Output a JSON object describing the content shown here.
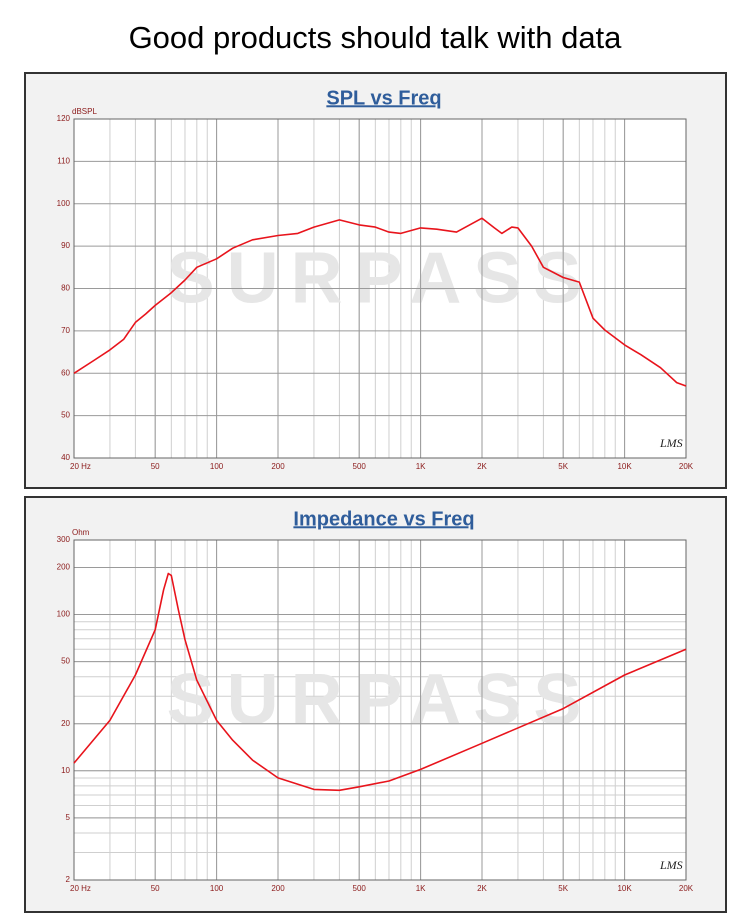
{
  "header": {
    "title": "Good products should talk with data"
  },
  "chart_data": [
    {
      "type": "line",
      "title": "SPL vs Freq",
      "y_label": "dBSPL",
      "watermark": "SURPASS",
      "logo": "LMS",
      "xscale": "log",
      "xminor": true,
      "yscale": "linear",
      "yminor": false,
      "grid": true,
      "xlim": [
        20,
        20000
      ],
      "ylim": [
        40,
        120
      ],
      "xticks": [
        {
          "value": 20,
          "label": "20 Hz"
        },
        50,
        100,
        200,
        500,
        {
          "value": 1000,
          "label": "1K"
        },
        {
          "value": 2000,
          "label": "2K"
        },
        {
          "value": 5000,
          "label": "5K"
        },
        {
          "value": 10000,
          "label": "10K"
        },
        {
          "value": 20000,
          "label": "20K"
        }
      ],
      "yticks": [
        40,
        50,
        60,
        70,
        80,
        90,
        100,
        110,
        120
      ],
      "x": [
        20,
        25,
        30,
        35,
        40,
        45,
        50,
        60,
        70,
        80,
        100,
        120,
        150,
        200,
        250,
        300,
        400,
        500,
        600,
        700,
        800,
        1000,
        1200,
        1500,
        2000,
        2300,
        2500,
        2800,
        3000,
        3500,
        4000,
        5000,
        6000,
        7000,
        8000,
        10000,
        12000,
        15000,
        18000,
        20000
      ],
      "series": [
        {
          "name": "SPL",
          "color": "#e8141c",
          "values": [
            60,
            63,
            65.5,
            68,
            72,
            74,
            76,
            79,
            82,
            85,
            87,
            89.5,
            91.5,
            92.5,
            93,
            94.5,
            96.2,
            95,
            94.5,
            93.3,
            93,
            94.3,
            94,
            93.3,
            96.6,
            94.3,
            93,
            94.5,
            94.3,
            90,
            85,
            82.6,
            81.5,
            73,
            70.2,
            66.7,
            64.4,
            61.3,
            57.8,
            57
          ]
        }
      ]
    },
    {
      "type": "line",
      "title": "Impedance vs Freq",
      "y_label": "Ohm",
      "watermark": "SURPASS",
      "logo": "LMS",
      "xscale": "log",
      "xminor": true,
      "yscale": "log",
      "yminor": true,
      "grid": true,
      "xlim": [
        20,
        20000
      ],
      "ylim": [
        2,
        300
      ],
      "xticks": [
        {
          "value": 20,
          "label": "20 Hz"
        },
        50,
        100,
        200,
        500,
        {
          "value": 1000,
          "label": "1K"
        },
        {
          "value": 2000,
          "label": "2K"
        },
        {
          "value": 5000,
          "label": "5K"
        },
        {
          "value": 10000,
          "label": "10K"
        },
        {
          "value": 20000,
          "label": "20K"
        }
      ],
      "yticks": [
        2,
        5,
        10,
        20,
        50,
        100,
        200,
        300
      ],
      "x": [
        20,
        30,
        40,
        50,
        55,
        58,
        60,
        65,
        70,
        80,
        100,
        120,
        150,
        200,
        300,
        400,
        500,
        700,
        1000,
        2000,
        5000,
        10000,
        20000
      ],
      "series": [
        {
          "name": "Impedance",
          "color": "#e8141c",
          "values": [
            11.2,
            21,
            41,
            80,
            144,
            183,
            178,
            107,
            69,
            38,
            21,
            15.7,
            11.7,
            9,
            7.6,
            7.5,
            7.9,
            8.6,
            10.2,
            15,
            25,
            41,
            60
          ]
        }
      ]
    }
  ]
}
